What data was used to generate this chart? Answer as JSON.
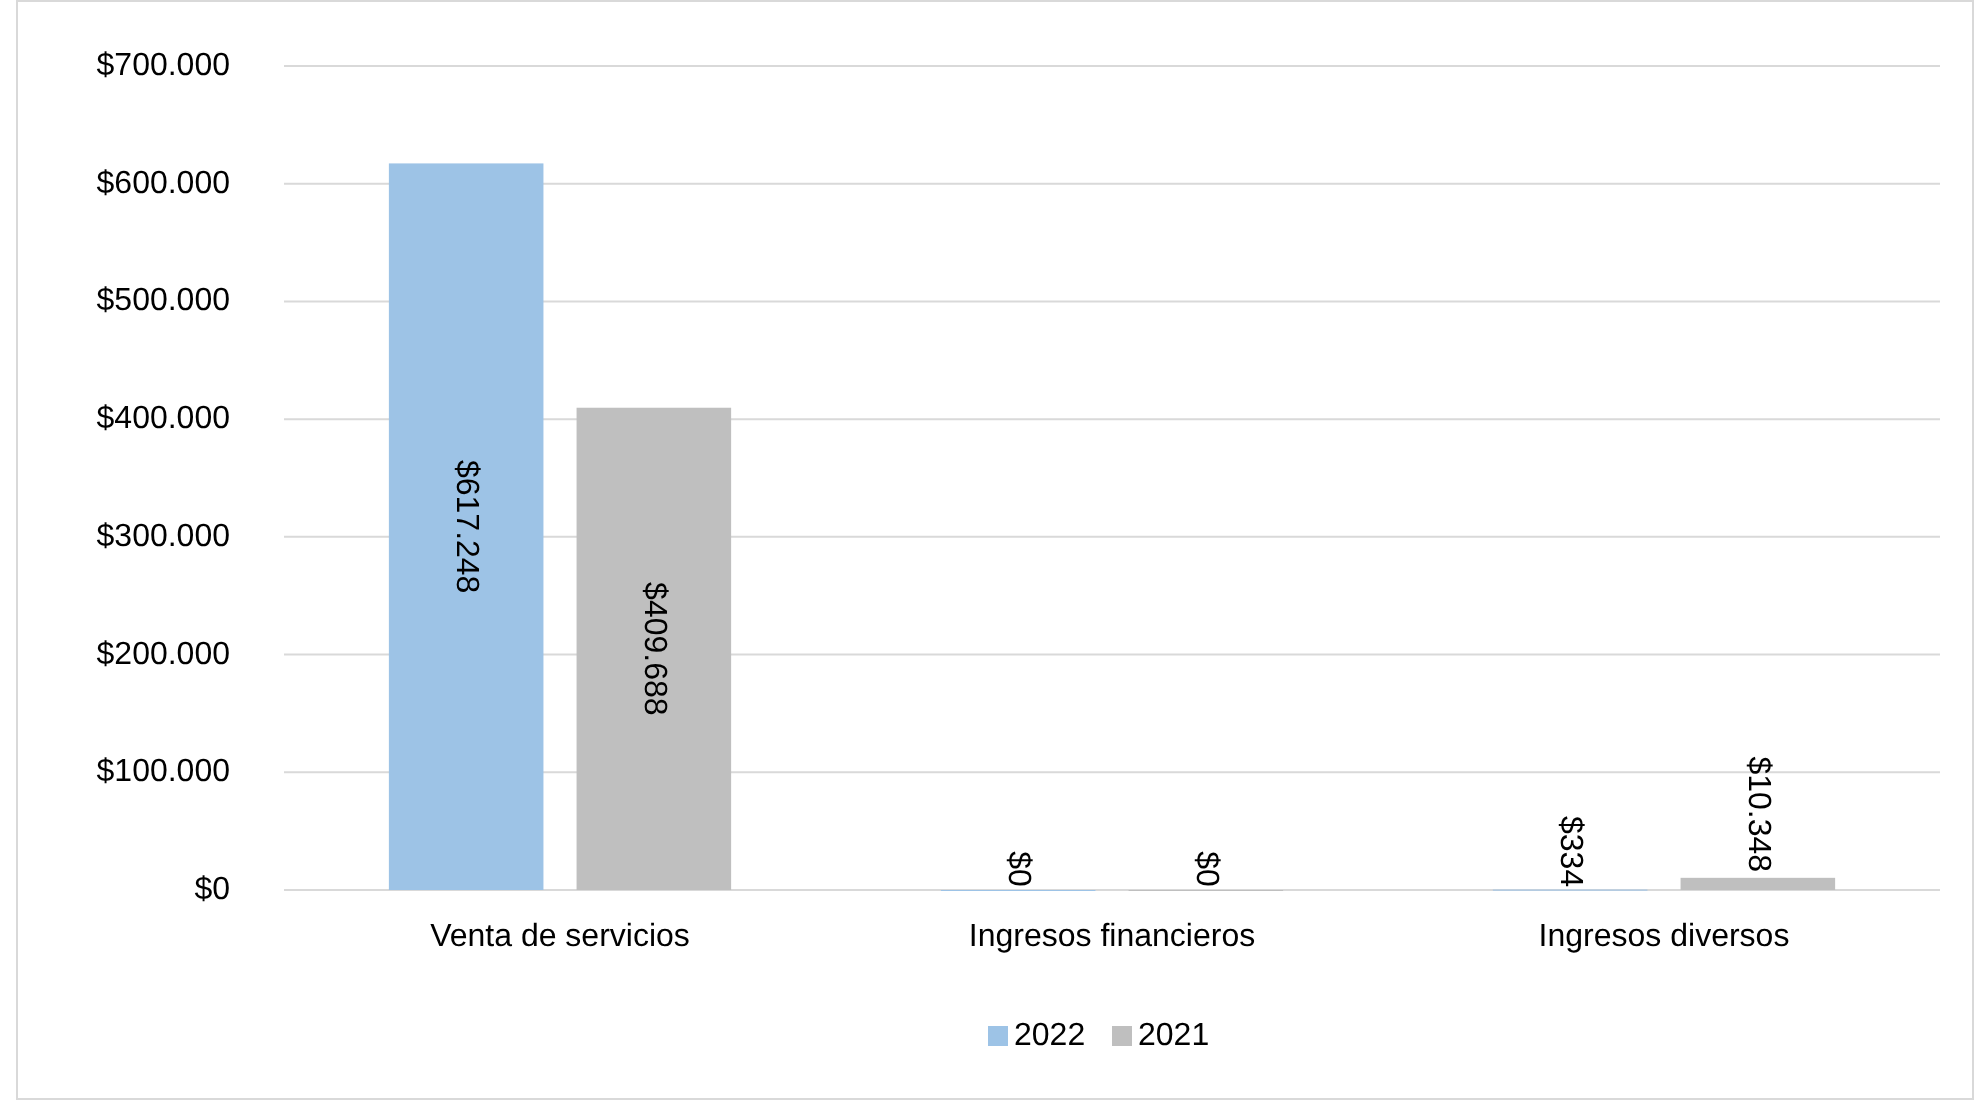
{
  "chart_data": {
    "type": "bar",
    "categories": [
      "Venta de servicios",
      "Ingresos financieros",
      "Ingresos diversos"
    ],
    "series": [
      {
        "name": "2022",
        "color": "#9dc3e6",
        "values": [
          617248,
          0,
          334
        ],
        "value_labels": [
          "$617.248",
          "$0",
          "$334"
        ]
      },
      {
        "name": "2021",
        "color": "#bfbfbf",
        "values": [
          409688,
          0,
          10348
        ],
        "value_labels": [
          "$409.688",
          "$0",
          "$10.348"
        ]
      }
    ],
    "ylim": [
      0,
      700000
    ],
    "yticks": [
      {
        "value": 0,
        "label": "$0"
      },
      {
        "value": 100000,
        "label": "$100.000"
      },
      {
        "value": 200000,
        "label": "$200.000"
      },
      {
        "value": 300000,
        "label": "$300.000"
      },
      {
        "value": 400000,
        "label": "$400.000"
      },
      {
        "value": 500000,
        "label": "$500.000"
      },
      {
        "value": 600000,
        "label": "$600.000"
      },
      {
        "value": 700000,
        "label": "$700.000"
      }
    ],
    "grid": "y",
    "legend": "bottom"
  }
}
